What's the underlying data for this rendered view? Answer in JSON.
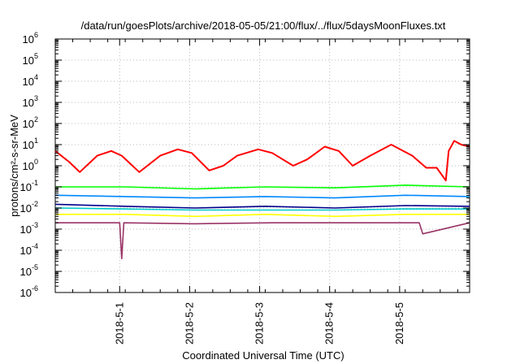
{
  "chart_data": {
    "type": "line",
    "title": "/data/run/goesPlots/archive/2018-05-05/21:00/flux/../flux/5daysMoonFluxes.txt",
    "xlabel": "Coordinated Universal Time (UTC)",
    "ylabel": "protons/cm²-s-sr-MeV",
    "yscale": "log",
    "ylim": [
      1e-06,
      1000000.0
    ],
    "xlim_days": [
      0,
      5.92
    ],
    "grid": true,
    "x_tick_labels": [
      "2018-5-1",
      "2018-5-2",
      "2018-5-3",
      "2018-5-4",
      "2018-5-5"
    ],
    "x_tick_positions_days": [
      0.92,
      1.92,
      2.92,
      3.92,
      4.92
    ],
    "y_tick_labels": [
      {
        "base": "10",
        "exp": "-6"
      },
      {
        "base": "10",
        "exp": "-5"
      },
      {
        "base": "10",
        "exp": "-4"
      },
      {
        "base": "10",
        "exp": "-3"
      },
      {
        "base": "10",
        "exp": "-2"
      },
      {
        "base": "10",
        "exp": "-1"
      },
      {
        "base": "10",
        "exp": "0"
      },
      {
        "base": "10",
        "exp": "1"
      },
      {
        "base": "10",
        "exp": "2"
      },
      {
        "base": "10",
        "exp": "3"
      },
      {
        "base": "10",
        "exp": "4"
      },
      {
        "base": "10",
        "exp": "5"
      },
      {
        "base": "10",
        "exp": "6"
      }
    ],
    "series": [
      {
        "color": "#ff0000",
        "x": [
          0,
          0.2,
          0.35,
          0.6,
          0.8,
          0.95,
          1.2,
          1.5,
          1.75,
          1.95,
          2.2,
          2.4,
          2.6,
          2.9,
          3.1,
          3.4,
          3.6,
          3.85,
          4.05,
          4.25,
          4.5,
          4.8,
          5.1,
          5.3,
          5.45,
          5.58,
          5.62,
          5.7,
          5.8,
          5.92
        ],
        "y": [
          5,
          1.5,
          0.5,
          3,
          5,
          3,
          0.5,
          3,
          6,
          4,
          0.6,
          1,
          3,
          6,
          4,
          1,
          2,
          8,
          5,
          1,
          3,
          10,
          3,
          0.8,
          0.8,
          0.2,
          5,
          15,
          10,
          8
        ]
      },
      {
        "color": "#00ff00",
        "x": [
          0,
          1,
          2,
          3,
          4,
          5,
          5.92
        ],
        "y": [
          0.1,
          0.1,
          0.08,
          0.1,
          0.09,
          0.12,
          0.1
        ]
      },
      {
        "color": "#0088ff",
        "x": [
          0,
          1,
          2,
          3,
          4,
          5,
          5.92
        ],
        "y": [
          0.04,
          0.035,
          0.03,
          0.035,
          0.03,
          0.04,
          0.035
        ]
      },
      {
        "color": "#00008b",
        "x": [
          0,
          1,
          2,
          3,
          4,
          5,
          5.92
        ],
        "y": [
          0.015,
          0.012,
          0.01,
          0.012,
          0.01,
          0.013,
          0.012
        ]
      },
      {
        "color": "#00cccc",
        "x": [
          0,
          1,
          2,
          3,
          4,
          5,
          5.92
        ],
        "y": [
          0.01,
          0.009,
          0.008,
          0.008,
          0.008,
          0.009,
          0.009
        ]
      },
      {
        "color": "#ffff00",
        "x": [
          0,
          1,
          2,
          3,
          4,
          5,
          5.92
        ],
        "y": [
          0.005,
          0.005,
          0.004,
          0.005,
          0.004,
          0.005,
          0.005
        ]
      },
      {
        "color": "#993366",
        "x": [
          0,
          0.92,
          0.95,
          0.98,
          2,
          3.1,
          4.2,
          5.2,
          5.25,
          5.92
        ],
        "y": [
          0.002,
          0.002,
          4e-05,
          0.002,
          0.0018,
          0.002,
          0.002,
          0.002,
          0.0006,
          0.002
        ]
      }
    ]
  }
}
